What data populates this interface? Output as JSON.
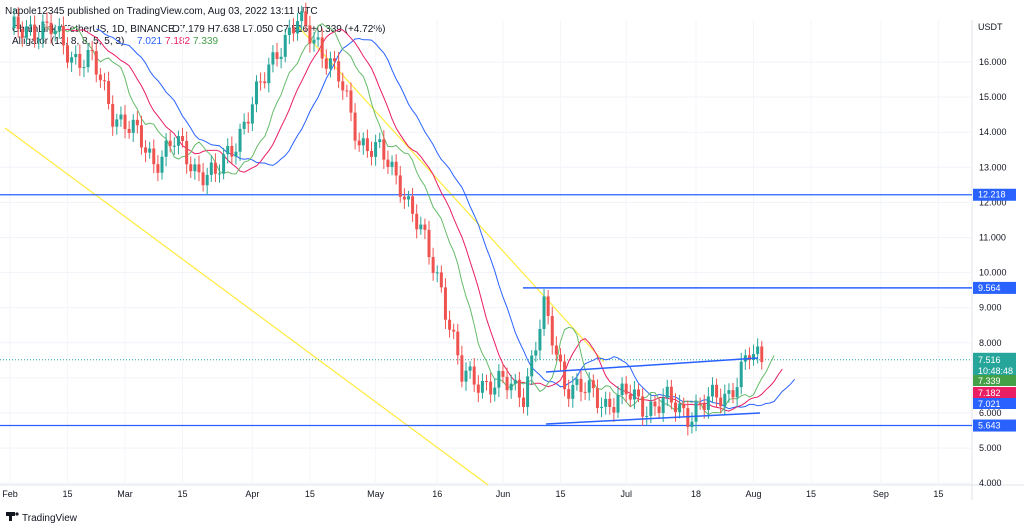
{
  "header": {
    "published": "Napole12345 published on TradingView.com, Aug 03, 2022 13:11 UTC",
    "symbol": "ChainLink / TetherUS, 1D, BINANCE",
    "ohlc": "O7.179 H7.638 L7.050 C7.516 +0.339 (+4.72%)",
    "alligator": "Alligator (13, 8, 8, 5, 5, 3)",
    "alligator_values": [
      "7.021",
      "7.182",
      "7.339"
    ]
  },
  "currency": "USDT",
  "brand": "TradingView",
  "colors": {
    "up": "#26a69a",
    "down": "#ef5350",
    "jaw": "#2962ff",
    "teeth": "#e91e63",
    "lips": "#66bb6a",
    "trend": "#ffeb3b",
    "hline": "#2962ff",
    "price": "#26a69a"
  },
  "chart_data": {
    "type": "candlestick",
    "x_tick_labels": [
      "Feb",
      "15",
      "Mar",
      "15",
      "Apr",
      "15",
      "May",
      "16",
      "Jun",
      "15",
      "Jul",
      "18",
      "Aug",
      "15",
      "Sep",
      "15"
    ],
    "y_tick_labels": [
      "4.000",
      "5.000",
      "6.000",
      "7.000",
      "8.000",
      "9.000",
      "10.000",
      "11.000",
      "12.000",
      "13.000",
      "14.000",
      "15.000",
      "16.000"
    ],
    "ylim": [
      4.0,
      17.3
    ],
    "horizontal_levels": [
      {
        "value": 12.218,
        "label": "12.218"
      },
      {
        "value": 9.564,
        "label": "9.564"
      },
      {
        "value": 5.643,
        "label": "5.643"
      }
    ],
    "last_price": {
      "value": 7.516,
      "label": "7.516",
      "countdown": "10:48:48"
    },
    "alligator_badges": [
      {
        "value": 7.339,
        "label": "7.339",
        "line": "lips"
      },
      {
        "value": 7.182,
        "label": "7.182",
        "line": "teeth"
      },
      {
        "value": 7.021,
        "label": "7.021",
        "line": "jaw"
      }
    ],
    "daily_close_approx": [
      [
        0,
        16.8
      ],
      [
        5,
        17.0
      ],
      [
        10,
        16.9
      ],
      [
        15,
        16.2
      ],
      [
        20,
        16.0
      ],
      [
        25,
        14.6
      ],
      [
        30,
        14.0
      ],
      [
        35,
        13.2
      ],
      [
        40,
        13.7
      ],
      [
        45,
        13.0
      ],
      [
        50,
        12.7
      ],
      [
        55,
        13.8
      ],
      [
        60,
        15.0
      ],
      [
        65,
        16.4
      ],
      [
        70,
        17.1
      ],
      [
        75,
        16.6
      ],
      [
        80,
        15.5
      ],
      [
        85,
        13.8
      ],
      [
        90,
        13.4
      ],
      [
        95,
        12.6
      ],
      [
        100,
        11.1
      ],
      [
        105,
        9.6
      ],
      [
        110,
        7.0
      ],
      [
        115,
        6.9
      ],
      [
        120,
        6.8
      ],
      [
        125,
        6.6
      ],
      [
        130,
        8.9
      ],
      [
        135,
        6.9
      ],
      [
        140,
        6.6
      ],
      [
        145,
        6.3
      ],
      [
        150,
        6.5
      ],
      [
        155,
        6.2
      ],
      [
        160,
        6.3
      ],
      [
        165,
        6.0
      ],
      [
        170,
        6.3
      ],
      [
        175,
        6.6
      ],
      [
        180,
        7.6
      ],
      [
        183,
        7.5
      ]
    ]
  }
}
